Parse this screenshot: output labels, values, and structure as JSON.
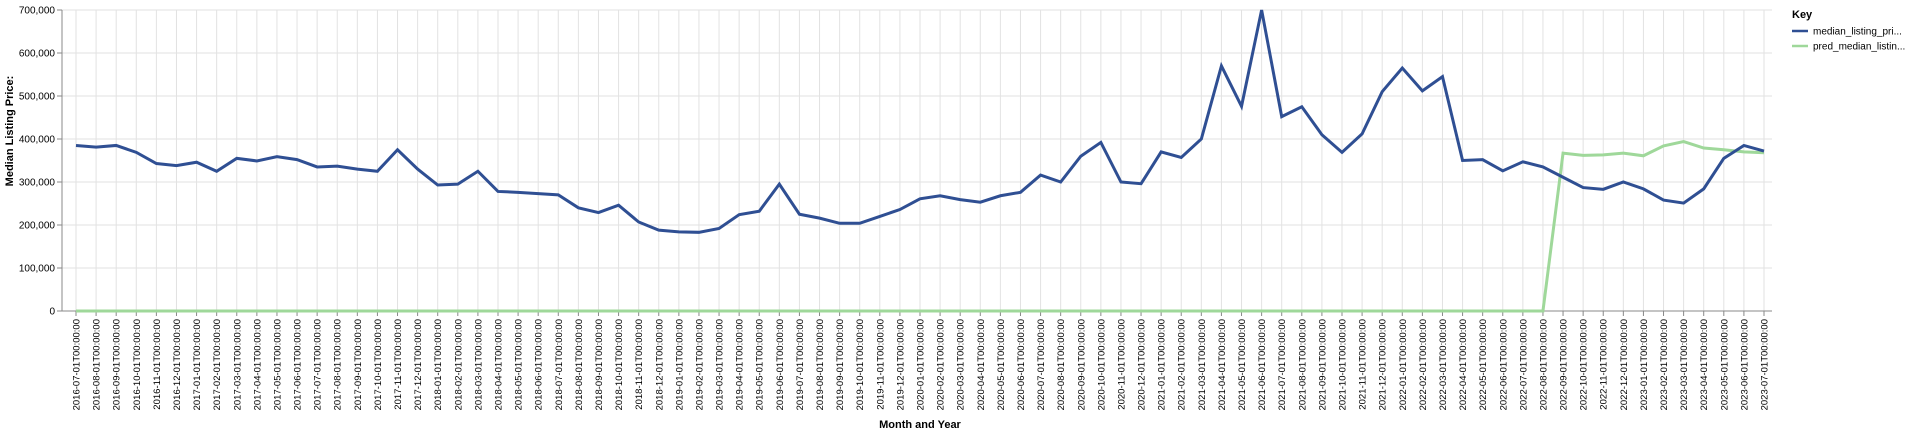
{
  "chart_data": {
    "type": "line",
    "xlabel": "Month and Year",
    "ylabel": "Median Listing Price:",
    "ylim": [
      0,
      700000
    ],
    "yticks": [
      "0",
      "100,000",
      "200,000",
      "300,000",
      "400,000",
      "500,000",
      "600,000",
      "700,000"
    ],
    "grid": true,
    "legend_title": "Key",
    "legend_placement": "top-right",
    "x": [
      "2016-07-01T00:00:00",
      "2016-08-01T00:00:00",
      "2016-09-01T00:00:00",
      "2016-10-01T00:00:00",
      "2016-11-01T00:00:00",
      "2016-12-01T00:00:00",
      "2017-01-01T00:00:00",
      "2017-02-01T00:00:00",
      "2017-03-01T00:00:00",
      "2017-04-01T00:00:00",
      "2017-05-01T00:00:00",
      "2017-06-01T00:00:00",
      "2017-07-01T00:00:00",
      "2017-08-01T00:00:00",
      "2017-09-01T00:00:00",
      "2017-10-01T00:00:00",
      "2017-11-01T00:00:00",
      "2017-12-01T00:00:00",
      "2018-01-01T00:00:00",
      "2018-02-01T00:00:00",
      "2018-03-01T00:00:00",
      "2018-04-01T00:00:00",
      "2018-05-01T00:00:00",
      "2018-06-01T00:00:00",
      "2018-07-01T00:00:00",
      "2018-08-01T00:00:00",
      "2018-09-01T00:00:00",
      "2018-10-01T00:00:00",
      "2018-11-01T00:00:00",
      "2018-12-01T00:00:00",
      "2019-01-01T00:00:00",
      "2019-02-01T00:00:00",
      "2019-03-01T00:00:00",
      "2019-04-01T00:00:00",
      "2019-05-01T00:00:00",
      "2019-06-01T00:00:00",
      "2019-07-01T00:00:00",
      "2019-08-01T00:00:00",
      "2019-09-01T00:00:00",
      "2019-10-01T00:00:00",
      "2019-11-01T00:00:00",
      "2019-12-01T00:00:00",
      "2020-01-01T00:00:00",
      "2020-02-01T00:00:00",
      "2020-03-01T00:00:00",
      "2020-04-01T00:00:00",
      "2020-05-01T00:00:00",
      "2020-06-01T00:00:00",
      "2020-07-01T00:00:00",
      "2020-08-01T00:00:00",
      "2020-09-01T00:00:00",
      "2020-10-01T00:00:00",
      "2020-11-01T00:00:00",
      "2020-12-01T00:00:00",
      "2021-01-01T00:00:00",
      "2021-02-01T00:00:00",
      "2021-03-01T00:00:00",
      "2021-04-01T00:00:00",
      "2021-05-01T00:00:00",
      "2021-06-01T00:00:00",
      "2021-07-01T00:00:00",
      "2021-08-01T00:00:00",
      "2021-09-01T00:00:00",
      "2021-10-01T00:00:00",
      "2021-11-01T00:00:00",
      "2021-12-01T00:00:00",
      "2022-01-01T00:00:00",
      "2022-02-01T00:00:00",
      "2022-03-01T00:00:00",
      "2022-04-01T00:00:00",
      "2022-05-01T00:00:00",
      "2022-06-01T00:00:00",
      "2022-07-01T00:00:00",
      "2022-08-01T00:00:00",
      "2022-09-01T00:00:00",
      "2022-10-01T00:00:00",
      "2022-11-01T00:00:00",
      "2022-12-01T00:00:00",
      "2023-01-01T00:00:00",
      "2023-02-01T00:00:00",
      "2023-03-01T00:00:00",
      "2023-04-01T00:00:00",
      "2023-05-01T00:00:00",
      "2023-06-01T00:00:00",
      "2023-07-01T00:00:00"
    ],
    "series": [
      {
        "name": "median_listing_pri...",
        "color": "#2f4f93",
        "values": [
          385000,
          381000,
          385000,
          369000,
          343000,
          338000,
          346000,
          325000,
          355000,
          349000,
          359000,
          352000,
          335000,
          337000,
          330000,
          325000,
          375000,
          330000,
          293000,
          295000,
          325000,
          278000,
          276000,
          273000,
          270000,
          240000,
          229000,
          246000,
          207000,
          188000,
          184000,
          183000,
          192000,
          224000,
          232000,
          295000,
          225000,
          216000,
          204000,
          204000,
          220000,
          236000,
          261000,
          268000,
          259000,
          253000,
          268000,
          276000,
          316000,
          300000,
          360000,
          392000,
          300000,
          296000,
          370000,
          357000,
          400000,
          570000,
          476000,
          700000,
          452000,
          475000,
          410000,
          369000,
          412000,
          510000,
          565000,
          512000,
          545000,
          350000,
          352000,
          326000,
          347000,
          335000,
          311000,
          287000,
          283000,
          300000,
          284000,
          258000,
          251000,
          284000,
          355000,
          385000,
          372000
        ]
      },
      {
        "name": "pred_median_listin...",
        "color": "#9fd89a",
        "values": [
          0,
          0,
          0,
          0,
          0,
          0,
          0,
          0,
          0,
          0,
          0,
          0,
          0,
          0,
          0,
          0,
          0,
          0,
          0,
          0,
          0,
          0,
          0,
          0,
          0,
          0,
          0,
          0,
          0,
          0,
          0,
          0,
          0,
          0,
          0,
          0,
          0,
          0,
          0,
          0,
          0,
          0,
          0,
          0,
          0,
          0,
          0,
          0,
          0,
          0,
          0,
          0,
          0,
          0,
          0,
          0,
          0,
          0,
          0,
          0,
          0,
          0,
          0,
          0,
          0,
          0,
          0,
          0,
          0,
          0,
          0,
          0,
          0,
          0,
          367000,
          362000,
          363000,
          367000,
          361000,
          384000,
          394000,
          379000,
          375000,
          370000,
          368000
        ]
      }
    ]
  }
}
